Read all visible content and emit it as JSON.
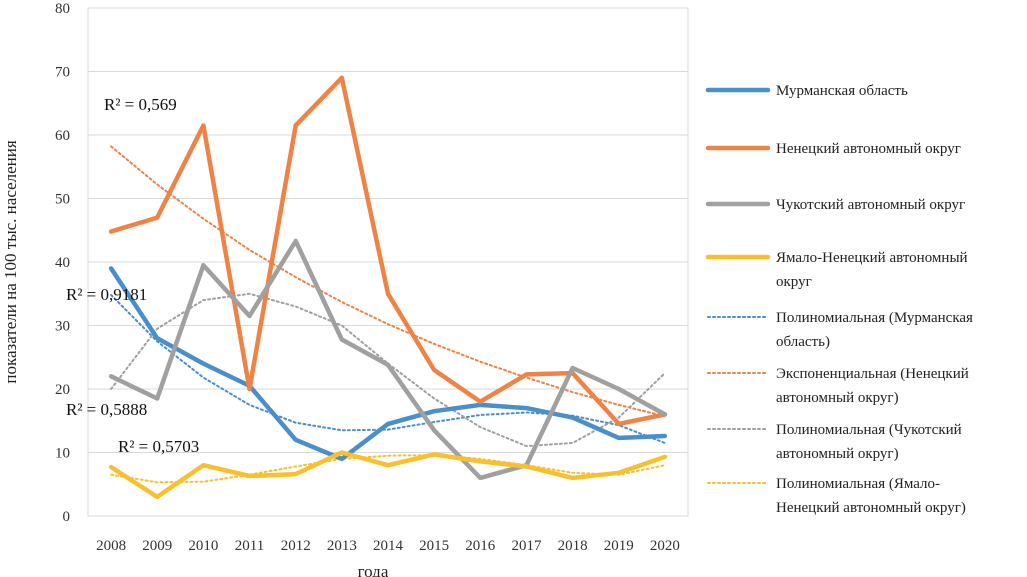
{
  "chart_data": {
    "type": "line",
    "xlabel": "года",
    "ylabel": "показатели на 100 тыс. населения",
    "ylim": [
      0,
      80
    ],
    "yticks": [
      "0",
      "10",
      "20",
      "30",
      "40",
      "50",
      "60",
      "70",
      "80"
    ],
    "categories": [
      "2008",
      "2009",
      "2010",
      "2011",
      "2012",
      "2013",
      "2014",
      "2015",
      "2016",
      "2017",
      "2018",
      "2019",
      "2020"
    ],
    "grid": "horizontal",
    "legend_position": "right",
    "series": [
      {
        "name": "Мурманская область",
        "color": "#4a8fcb",
        "style": "solid",
        "values": [
          39.0,
          28.0,
          24.0,
          20.5,
          12.0,
          9.0,
          14.5,
          16.5,
          17.5,
          17.0,
          15.5,
          12.3,
          12.6
        ]
      },
      {
        "name": "Ненецкий автономный округ",
        "color": "#ef8245",
        "style": "solid",
        "values": [
          44.8,
          47.0,
          61.5,
          20.0,
          61.5,
          69.0,
          35.0,
          23.0,
          18.0,
          22.3,
          22.5,
          14.5,
          16.0
        ]
      },
      {
        "name": "Чукотский автономный округ",
        "color": "#a0a0a0",
        "style": "solid",
        "values": [
          22.0,
          18.5,
          39.5,
          31.5,
          43.3,
          27.8,
          23.8,
          13.5,
          6.0,
          8.0,
          23.3,
          20.0,
          16.0
        ]
      },
      {
        "name": "Ямало-Ненецкий автономный округ",
        "color": "#f8c02e",
        "style": "solid",
        "values": [
          7.7,
          3.0,
          8.0,
          6.3,
          6.6,
          10.0,
          8.0,
          9.7,
          8.6,
          7.8,
          6.0,
          6.8,
          9.3
        ]
      },
      {
        "name": "Полиномиальная (Мурманская область)",
        "color": "#4a8fcb",
        "style": "dotted",
        "values": [
          34.8,
          27.5,
          21.8,
          17.5,
          14.7,
          13.5,
          13.6,
          14.8,
          15.9,
          16.3,
          15.8,
          14.3,
          11.5
        ]
      },
      {
        "name": "Экспоненциальная (Ненецкий автономный округ)",
        "color": "#ef8245",
        "style": "dotted",
        "values": [
          58.2,
          52.2,
          46.8,
          41.9,
          37.6,
          33.7,
          30.2,
          27.1,
          24.3,
          21.8,
          19.5,
          17.5,
          15.7
        ]
      },
      {
        "name": "Полиномиальная (Чукотский автономный округ)",
        "color": "#a0a0a0",
        "style": "dotted",
        "values": [
          20.0,
          29.5,
          34.0,
          35.0,
          33.0,
          30.0,
          24.0,
          18.5,
          14.0,
          11.0,
          11.5,
          15.5,
          22.5
        ]
      },
      {
        "name": "Полиномиальная (Ямало-Ненецкий автономный округ)",
        "color": "#f8c02e",
        "style": "dotted",
        "values": [
          6.5,
          5.3,
          5.4,
          6.5,
          7.8,
          9.0,
          9.5,
          9.6,
          9.0,
          8.0,
          6.8,
          6.5,
          8.0
        ]
      }
    ],
    "annotations": [
      "R² = 0,569",
      "R² = 0,9181",
      "R² = 0,5888",
      "R² = 0,5703"
    ],
    "legend_lines": [
      [
        "Мурманская область"
      ],
      [
        "Ненецкий автономный округ"
      ],
      [
        "Чукотский автономный округ"
      ],
      [
        "Ямало-Ненецкий автономный",
        "округ"
      ],
      [
        "Полиномиальная (Мурманская",
        "область)"
      ],
      [
        "Экспоненциальная (Ненецкий",
        "автономный округ)"
      ],
      [
        "Полиномиальная (Чукотский",
        "автономный округ)"
      ],
      [
        "Полиномиальная (Ямало-",
        "Ненецкий автономный округ)"
      ]
    ]
  }
}
